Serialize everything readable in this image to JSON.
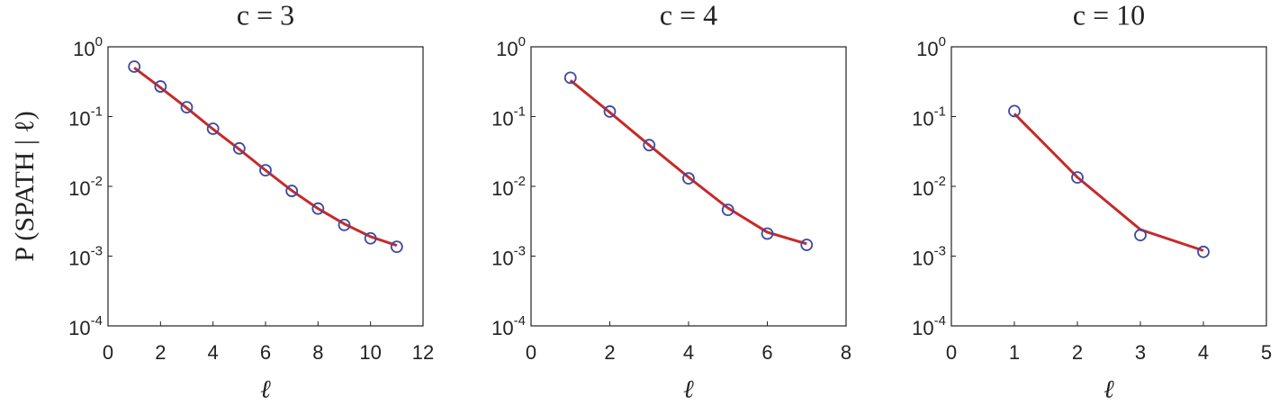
{
  "chart_data": [
    {
      "type": "line",
      "title": "c = 3",
      "xlabel": "ℓ",
      "ylabel": "P (SPATH | ℓ)",
      "log_y": true,
      "x": [
        1,
        2,
        3,
        4,
        5,
        6,
        7,
        8,
        9,
        10,
        11
      ],
      "series": [
        {
          "color": "#c62a2a",
          "values": [
            0.5,
            0.26,
            0.133,
            0.066,
            0.034,
            0.017,
            0.0087,
            0.0048,
            0.0029,
            0.0019,
            0.00142
          ]
        },
        {
          "color": "#3e4aa0",
          "marker": "circle",
          "values": [
            0.52,
            0.27,
            0.136,
            0.067,
            0.035,
            0.017,
            0.0086,
            0.0048,
            0.0028,
            0.0018,
            0.00136
          ]
        }
      ],
      "xlim": [
        0,
        12
      ],
      "xticks": [
        0,
        2,
        4,
        6,
        8,
        10,
        12
      ],
      "ylim": [
        0.0001,
        1
      ],
      "yticks": [
        {
          "value": 0.0001,
          "label": "10^-4"
        },
        {
          "value": 0.001,
          "label": "10^-3"
        },
        {
          "value": 0.01,
          "label": "10^-2"
        },
        {
          "value": 0.1,
          "label": "10^-1"
        },
        {
          "value": 1,
          "label": "10^0"
        }
      ]
    },
    {
      "type": "line",
      "title": "c = 4",
      "xlabel": "ℓ",
      "log_y": true,
      "x": [
        1,
        2,
        3,
        4,
        5,
        6,
        7
      ],
      "series": [
        {
          "color": "#c62a2a",
          "values": [
            0.33,
            0.115,
            0.039,
            0.0135,
            0.0049,
            0.0022,
            0.0015
          ]
        },
        {
          "color": "#3e4aa0",
          "marker": "circle",
          "values": [
            0.36,
            0.118,
            0.039,
            0.013,
            0.0046,
            0.0021,
            0.00145
          ]
        }
      ],
      "xlim": [
        0,
        8
      ],
      "xticks": [
        0,
        2,
        4,
        6,
        8
      ],
      "ylim": [
        0.0001,
        1
      ],
      "yticks": [
        {
          "value": 0.0001,
          "label": "10^-4"
        },
        {
          "value": 0.001,
          "label": "10^-3"
        },
        {
          "value": 0.01,
          "label": "10^-2"
        },
        {
          "value": 0.1,
          "label": "10^-1"
        },
        {
          "value": 1,
          "label": "10^0"
        }
      ]
    },
    {
      "type": "line",
      "title": "c = 10",
      "xlabel": "ℓ",
      "log_y": true,
      "x": [
        1,
        2,
        3,
        4
      ],
      "series": [
        {
          "color": "#c62a2a",
          "values": [
            0.11,
            0.0135,
            0.0024,
            0.0012
          ]
        },
        {
          "color": "#3e4aa0",
          "marker": "circle",
          "values": [
            0.12,
            0.0134,
            0.002,
            0.00115
          ]
        }
      ],
      "xlim": [
        0,
        5
      ],
      "xticks": [
        0,
        1,
        2,
        3,
        4,
        5
      ],
      "ylim": [
        0.0001,
        1
      ],
      "yticks": [
        {
          "value": 0.0001,
          "label": "10^-4"
        },
        {
          "value": 0.001,
          "label": "10^-3"
        },
        {
          "value": 0.01,
          "label": "10^-2"
        },
        {
          "value": 0.1,
          "label": "10^-1"
        },
        {
          "value": 1,
          "label": "10^0"
        }
      ]
    }
  ]
}
